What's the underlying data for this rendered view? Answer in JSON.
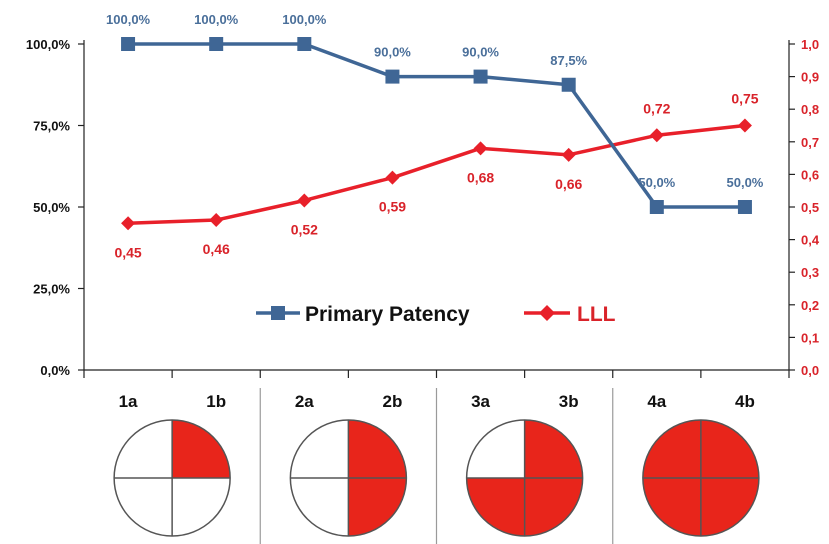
{
  "chart_data": {
    "type": "line",
    "categories": [
      "1a",
      "1b",
      "2a",
      "2b",
      "3a",
      "3b",
      "4a",
      "4b"
    ],
    "y_left": {
      "ticks": [
        "0,0%",
        "25,0%",
        "50,0%",
        "75,0%",
        "100,0%"
      ],
      "range": [
        0,
        100
      ]
    },
    "y_right": {
      "ticks": [
        "0,0",
        "0,1",
        "0,2",
        "0,3",
        "0,4",
        "0,5",
        "0,6",
        "0,7",
        "0,8",
        "0,9",
        "1,0"
      ],
      "range": [
        0,
        1
      ]
    },
    "series": [
      {
        "name": "Primary Patency",
        "axis": "left",
        "marker": "square",
        "color": "#3f6695",
        "values": [
          100,
          100,
          100,
          90,
          90,
          87.5,
          50,
          50
        ],
        "labels": [
          "100,0%",
          "100,0%",
          "100,0%",
          "90,0%",
          "90,0%",
          "87,5%",
          "50,0%",
          "50,0%"
        ]
      },
      {
        "name": "LLL",
        "axis": "right",
        "marker": "diamond",
        "color": "#e8202a",
        "values": [
          0.45,
          0.46,
          0.52,
          0.59,
          0.68,
          0.66,
          0.72,
          0.75
        ],
        "labels": [
          "0,45",
          "0,46",
          "0,52",
          "0,59",
          "0,68",
          "0,66",
          "0,72",
          "0,75"
        ]
      }
    ],
    "legend_position": "center",
    "grid": false
  },
  "quadrant_diagrams": [
    {
      "group": "1",
      "filled_quadrants": 1
    },
    {
      "group": "2",
      "filled_quadrants": 2
    },
    {
      "group": "3",
      "filled_quadrants": 3
    },
    {
      "group": "4",
      "filled_quadrants": 4
    }
  ],
  "colors": {
    "fill_red": "#e8251b",
    "axis": "#222222"
  }
}
